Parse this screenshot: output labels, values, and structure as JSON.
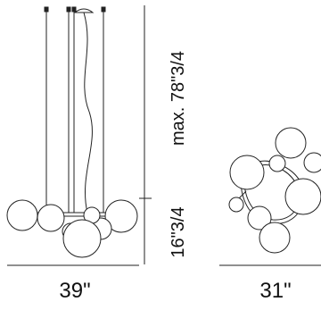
{
  "dimensions": {
    "width_label": "39\"",
    "side_height_label": "16\"3/4",
    "max_height_label": "max. 78\"3/4",
    "top_width_label": "31\""
  }
}
